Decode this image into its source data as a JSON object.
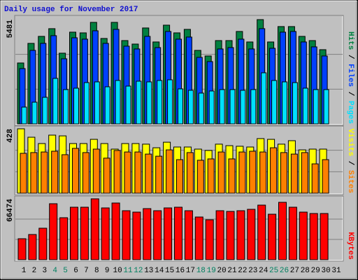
{
  "legend_separator": " / ",
  "chart_data": [
    {
      "type": "bar",
      "title": "Daily usage for November 2017",
      "ylim": [
        0,
        5481
      ],
      "yticks": [
        5481
      ],
      "grid": true,
      "series": [
        {
          "name": "Hits",
          "color": "#008040",
          "values": [
            3202,
            4232,
            4600,
            5005,
            3717,
            4821,
            4784,
            5336,
            4490,
            5336,
            4379,
            4195,
            5042,
            4306,
            5189,
            4784,
            4968,
            3864,
            3570,
            4379,
            4379,
            4858,
            4306,
            5481,
            4306,
            5115,
            5115,
            4600,
            4379,
            3901,
            null
          ]
        },
        {
          "name": "Files",
          "color": "#0040ff",
          "values": [
            2907,
            3864,
            4232,
            4637,
            3422,
            4526,
            4453,
            4894,
            4232,
            4968,
            4085,
            3938,
            4600,
            4011,
            4858,
            4453,
            4563,
            3496,
            3275,
            3938,
            4011,
            4453,
            3938,
            5005,
            3974,
            4821,
            4858,
            4306,
            4048,
            3570,
            null
          ]
        },
        {
          "name": "Pages",
          "color": "#00e0ff",
          "values": [
            883,
            1141,
            1398,
            2392,
            1803,
            1877,
            2171,
            2208,
            1950,
            2282,
            1987,
            2245,
            2208,
            2282,
            2318,
            1840,
            1766,
            1619,
            1730,
            1803,
            1803,
            1766,
            1803,
            2686,
            2282,
            2208,
            2171,
            1877,
            1803,
            1803,
            null
          ]
        }
      ]
    },
    {
      "type": "bar",
      "ylim": [
        0,
        428
      ],
      "yticks": [
        428
      ],
      "grid": true,
      "series": [
        {
          "name": "Visits",
          "color": "#ffff00",
          "values": [
            428,
            372,
            330,
            386,
            381,
            330,
            330,
            358,
            330,
            293,
            330,
            330,
            326,
            302,
            339,
            307,
            307,
            293,
            284,
            326,
            316,
            312,
            307,
            363,
            358,
            326,
            349,
            288,
            293,
            293,
            null
          ]
        },
        {
          "name": "Sites",
          "color": "#ff8000",
          "values": [
            265,
            270,
            274,
            279,
            256,
            298,
            270,
            293,
            233,
            284,
            274,
            274,
            260,
            246,
            288,
            223,
            270,
            219,
            228,
            274,
            228,
            274,
            279,
            274,
            302,
            270,
            260,
            270,
            195,
            223,
            null
          ]
        }
      ]
    },
    {
      "type": "bar",
      "ylim": [
        0,
        66474
      ],
      "yticks": [
        66474
      ],
      "grid": true,
      "categories": [
        "1",
        "2",
        "3",
        "4",
        "5",
        "6",
        "7",
        "8",
        "9",
        "10",
        "11",
        "12",
        "13",
        "14",
        "15",
        "16",
        "17",
        "18",
        "19",
        "20",
        "21",
        "22",
        "23",
        "24",
        "25",
        "26",
        "27",
        "28",
        "29",
        "30",
        "31"
      ],
      "category_colors": [
        "#000000",
        "#000000",
        "#000000",
        "#008060",
        "#008060",
        "#000000",
        "#000000",
        "#000000",
        "#000000",
        "#000000",
        "#008060",
        "#008060",
        "#000000",
        "#000000",
        "#000000",
        "#000000",
        "#000000",
        "#008060",
        "#008060",
        "#000000",
        "#000000",
        "#000000",
        "#000000",
        "#000000",
        "#008060",
        "#008060",
        "#000000",
        "#000000",
        "#000000",
        "#000000",
        "#000000"
      ],
      "series": [
        {
          "name": "KBytes",
          "color": "#ff0000",
          "values": [
            22920,
            27504,
            34380,
            61120,
            45840,
            57300,
            57300,
            66474,
            56536,
            61884,
            53480,
            51952,
            55772,
            53480,
            56536,
            57300,
            53480,
            46604,
            43548,
            53480,
            52716,
            53480,
            55008,
            59592,
            49660,
            62648,
            57300,
            51952,
            50424,
            50424,
            null
          ]
        }
      ]
    }
  ]
}
